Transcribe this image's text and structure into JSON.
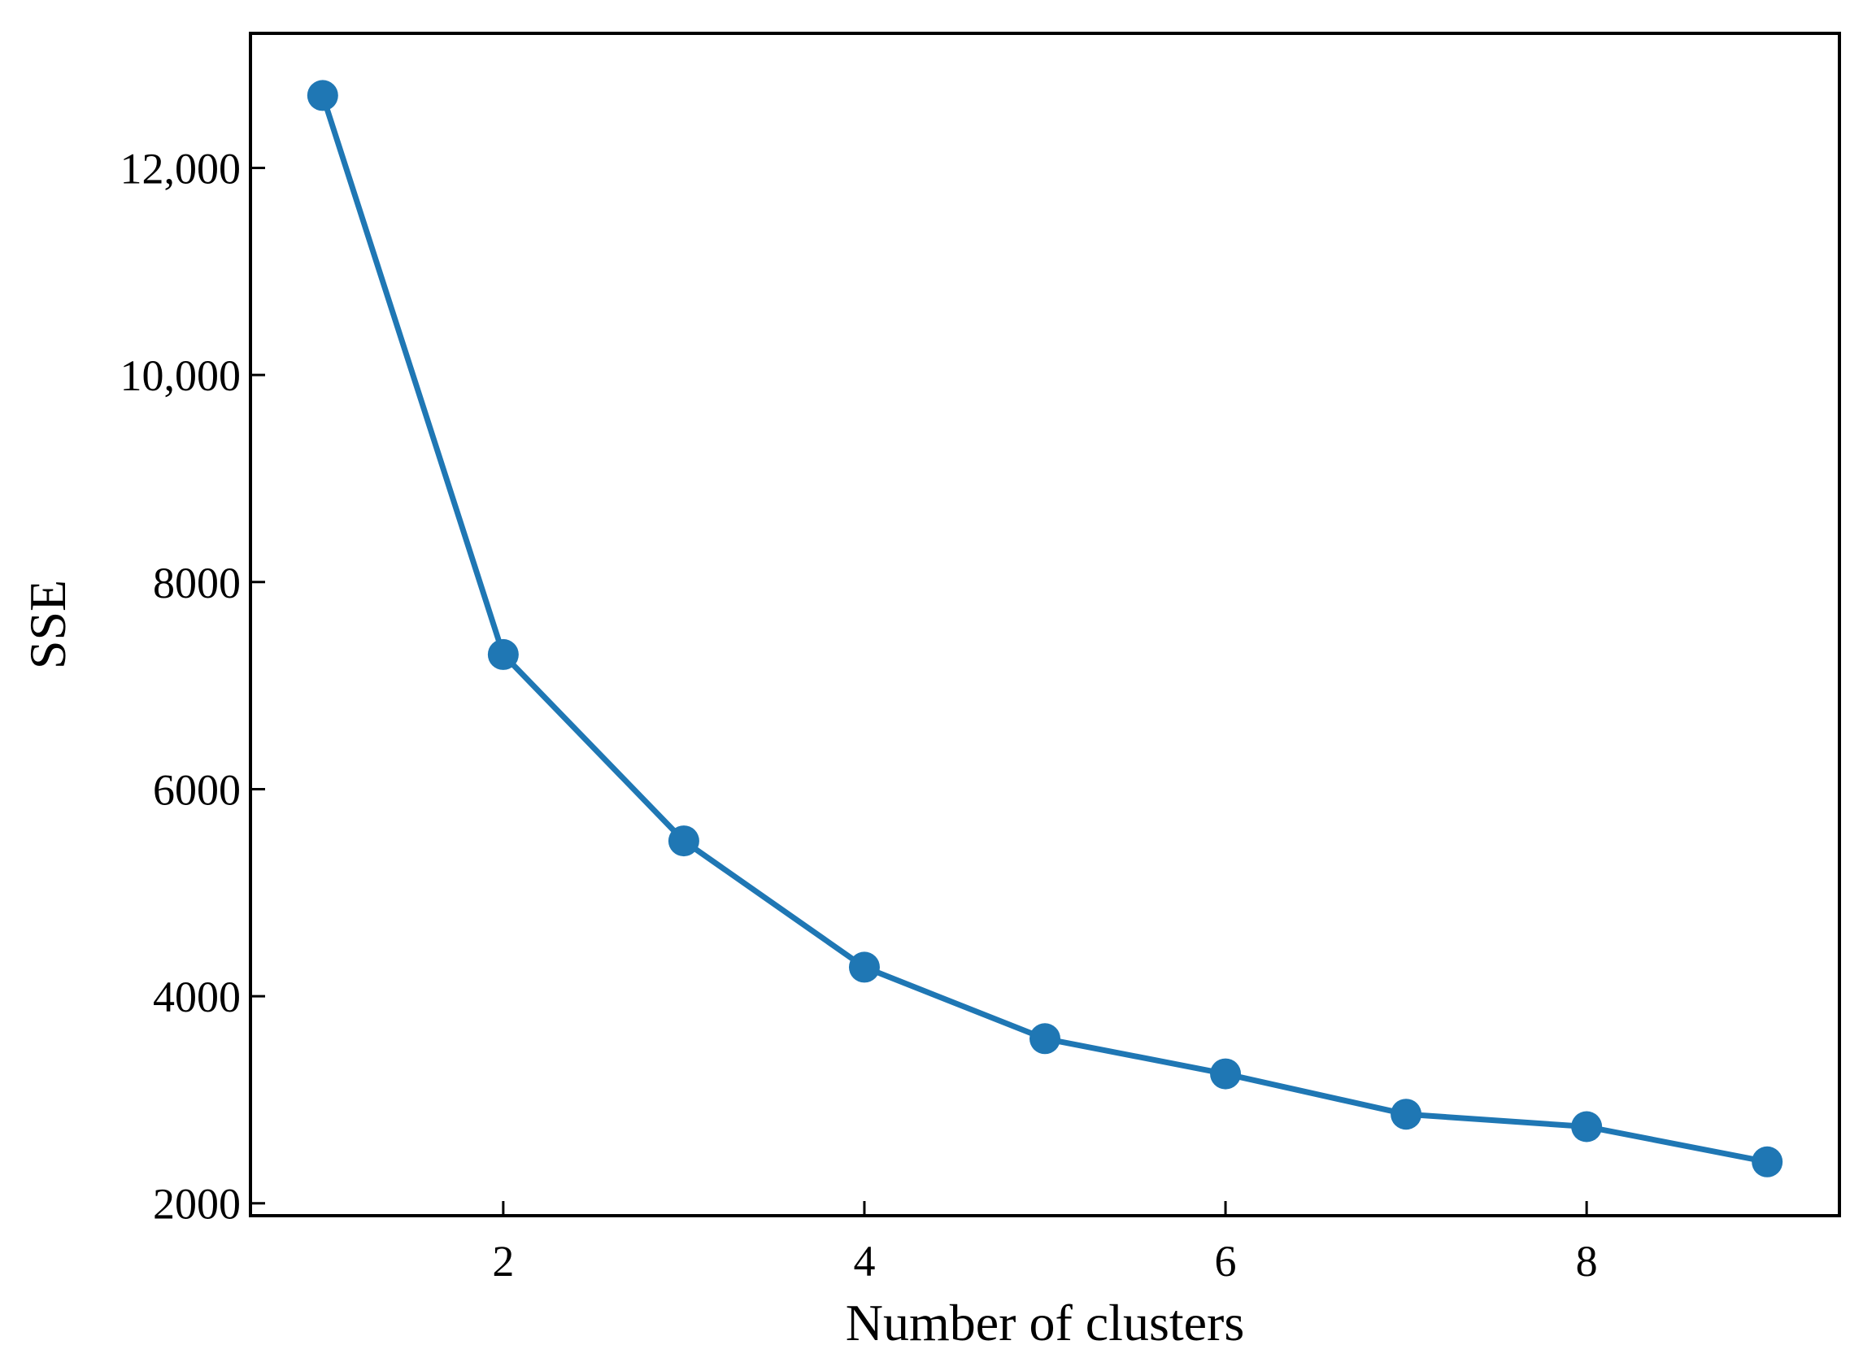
{
  "chart_data": {
    "type": "line",
    "title": "",
    "xlabel": "Number of clusters",
    "ylabel": "SSE",
    "xlim": [
      0.6,
      9.4
    ],
    "ylim": [
      1880,
      13300
    ],
    "x_ticks": [
      2,
      4,
      6,
      8
    ],
    "x_tick_labels": [
      "2",
      "4",
      "6",
      "8"
    ],
    "y_ticks": [
      2000,
      4000,
      6000,
      8000,
      10000,
      12000
    ],
    "y_tick_labels": [
      "2000",
      "4000",
      "6000",
      "8000",
      "10,000",
      "12,000"
    ],
    "grid": false,
    "legend": "none",
    "series": [
      {
        "color": "#1f77b4",
        "marker": "circle",
        "x": [
          1,
          2,
          3,
          4,
          5,
          6,
          7,
          8,
          9
        ],
        "y": [
          12700,
          7300,
          5500,
          4280,
          3590,
          3250,
          2860,
          2740,
          2400
        ]
      }
    ]
  }
}
